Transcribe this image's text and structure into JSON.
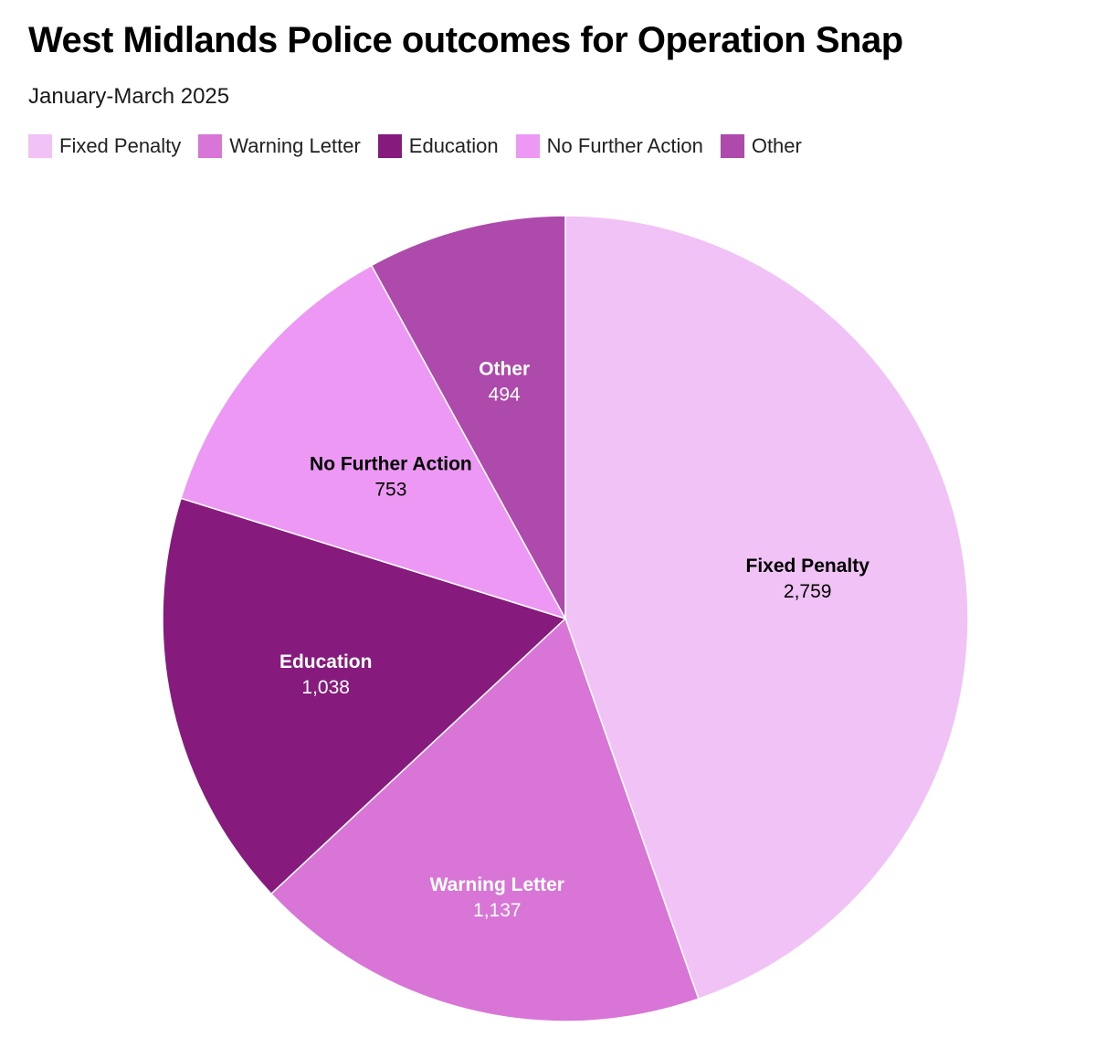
{
  "chart_data": {
    "type": "pie",
    "title": "West Midlands Police outcomes for Operation Snap",
    "subtitle": "January-March 2025",
    "legend_position": "top-left",
    "slices": [
      {
        "label": "Fixed Penalty",
        "value": 2759,
        "display": "2,759",
        "color": "#f1c2f6",
        "label_color": "#000000"
      },
      {
        "label": "Warning Letter",
        "value": 1137,
        "display": "1,137",
        "color": "#d975d6",
        "label_color": "#ffffff"
      },
      {
        "label": "Education",
        "value": 1038,
        "display": "1,038",
        "color": "#861b7d",
        "label_color": "#ffffff"
      },
      {
        "label": "No Further Action",
        "value": 753,
        "display": "753",
        "color": "#ed98f4",
        "label_color": "#000000"
      },
      {
        "label": "Other",
        "value": 494,
        "display": "494",
        "color": "#ad4aab",
        "label_color": "#ffffff"
      }
    ]
  }
}
